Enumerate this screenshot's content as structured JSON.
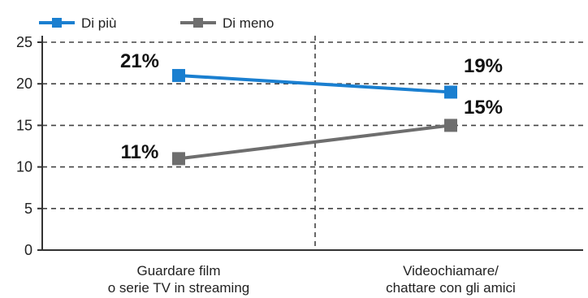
{
  "chart_data": {
    "type": "line",
    "categories": [
      [
        "Guardare film",
        "o serie TV in streaming"
      ],
      [
        "Videochiamare/",
        "chattare con gli amici"
      ]
    ],
    "series": [
      {
        "name": "Di più",
        "values": [
          21,
          19
        ],
        "labels": [
          "21%",
          "19%"
        ],
        "color": "#1a7fd0",
        "marker": "square"
      },
      {
        "name": "Di meno",
        "values": [
          11,
          15
        ],
        "labels": [
          "11%",
          "15%"
        ],
        "color": "#6e6e6e",
        "marker": "square"
      }
    ],
    "ylim": [
      0,
      25
    ],
    "yticks": [
      0,
      5,
      10,
      15,
      20,
      25
    ],
    "grid": true,
    "grid_style": "dashed",
    "legend": "top-left"
  }
}
